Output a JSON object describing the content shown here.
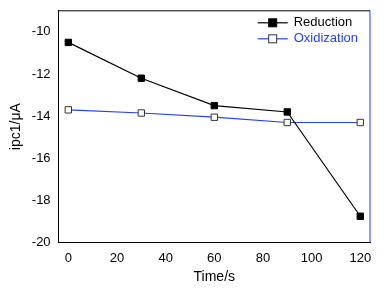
{
  "chart_data": {
    "type": "line",
    "x_label": "Time/s",
    "y_label": "ipc1/μA",
    "x": [
      0,
      30,
      60,
      90,
      120
    ],
    "series": [
      {
        "name": "Reduction",
        "color": "#000000",
        "marker": "square",
        "line_style": "solid",
        "values": [
          -10.5,
          -12.2,
          -13.5,
          -13.8,
          -18.75
        ]
      },
      {
        "name": "Oxidization",
        "color": "#1f3fff",
        "marker": "square-open",
        "line_style": "solid",
        "values": [
          -13.7,
          -13.85,
          -14.05,
          -14.3,
          -14.3
        ]
      }
    ],
    "xlim": [
      -4,
      124
    ],
    "xticks": [
      0,
      20,
      40,
      60,
      80,
      100,
      120
    ],
    "ylim": [
      -20,
      -9
    ],
    "yticks": [
      -20,
      -18,
      -16,
      -14,
      -12,
      -10
    ],
    "grid": false,
    "legend": "upper right"
  }
}
